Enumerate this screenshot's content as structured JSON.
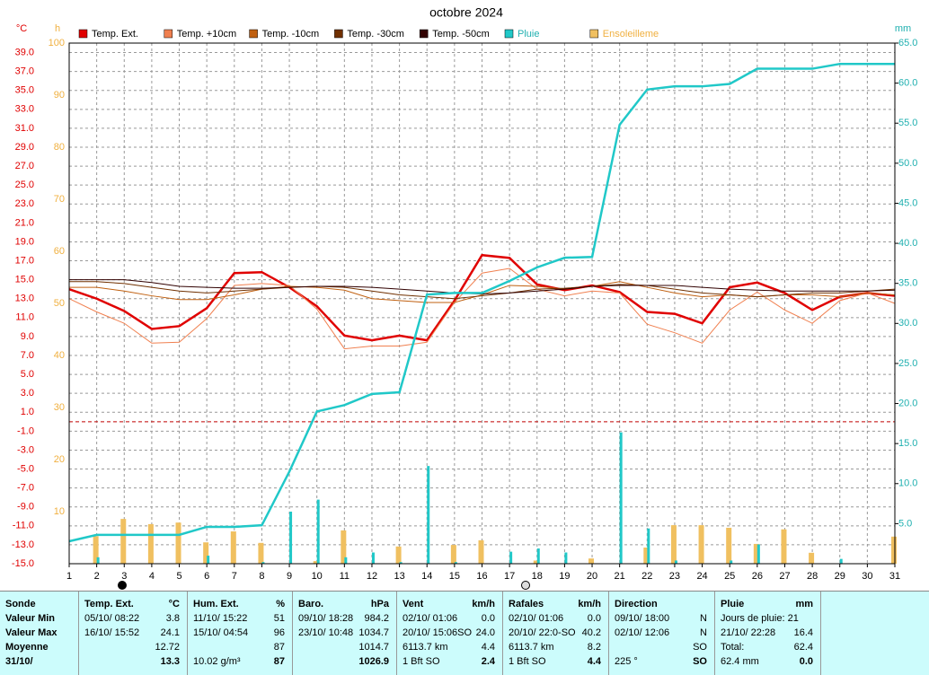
{
  "chart_data": {
    "type": "line",
    "title": "octobre 2024",
    "y_unit": "°C",
    "y2_unit": "h",
    "y3_unit": "mm",
    "x": [
      1,
      2,
      3,
      4,
      5,
      6,
      7,
      8,
      9,
      10,
      11,
      12,
      13,
      14,
      15,
      16,
      17,
      18,
      19,
      20,
      21,
      22,
      23,
      24,
      25,
      26,
      27,
      28,
      29,
      30,
      31
    ],
    "xlim": [
      1,
      31
    ],
    "ylim": [
      -15,
      40
    ],
    "yticks": [
      {
        "value": -15,
        "label": "-15.0"
      },
      {
        "value": -13,
        "label": "-13.0"
      },
      {
        "value": -11,
        "label": "-11.0"
      },
      {
        "value": -9,
        "label": "-9.0"
      },
      {
        "value": -7,
        "label": "-7.0"
      },
      {
        "value": -5,
        "label": "-5.0"
      },
      {
        "value": -3,
        "label": "-3.0"
      },
      {
        "value": -1,
        "label": "-1.0"
      },
      {
        "value": 1,
        "label": "1.0"
      },
      {
        "value": 3,
        "label": "3.0"
      },
      {
        "value": 5,
        "label": "5.0"
      },
      {
        "value": 7,
        "label": "7.0"
      },
      {
        "value": 9,
        "label": "9.0"
      },
      {
        "value": 11,
        "label": "11.0"
      },
      {
        "value": 13,
        "label": "13.0"
      },
      {
        "value": 15,
        "label": "15.0"
      },
      {
        "value": 17,
        "label": "17.0"
      },
      {
        "value": 19,
        "label": "19.0"
      },
      {
        "value": 21,
        "label": "21.0"
      },
      {
        "value": 23,
        "label": "23.0"
      },
      {
        "value": 25,
        "label": "25.0"
      },
      {
        "value": 27,
        "label": "27.0"
      },
      {
        "value": 29,
        "label": "29.0"
      },
      {
        "value": 31,
        "label": "31.0"
      },
      {
        "value": 33,
        "label": "33.0"
      },
      {
        "value": 35,
        "label": "35.0"
      },
      {
        "value": 37,
        "label": "37.0"
      },
      {
        "value": 39,
        "label": "39.0"
      }
    ],
    "y2lim": [
      0,
      100
    ],
    "y2ticks": [
      10,
      20,
      30,
      40,
      50,
      60,
      70,
      80,
      90,
      100
    ],
    "y3lim": [
      0,
      65
    ],
    "y3ticks": [
      {
        "value": 5,
        "label": "5.0"
      },
      {
        "value": 10,
        "label": "10.0"
      },
      {
        "value": 15,
        "label": "15.0"
      },
      {
        "value": 20,
        "label": "20.0"
      },
      {
        "value": 25,
        "label": "25.0"
      },
      {
        "value": 30,
        "label": "30.0"
      },
      {
        "value": 35,
        "label": "35.0"
      },
      {
        "value": 40,
        "label": "40.0"
      },
      {
        "value": 45,
        "label": "45.0"
      },
      {
        "value": 50,
        "label": "50.0"
      },
      {
        "value": 55,
        "label": "55.0"
      },
      {
        "value": 60,
        "label": "60.0"
      },
      {
        "value": 65,
        "label": "65.0"
      }
    ],
    "grid": true,
    "hline": {
      "value": 0,
      "color": "#c00000"
    },
    "series": [
      {
        "name": "Temp. Ext.",
        "type": "line",
        "color": "#e00000",
        "width": 2.5,
        "values": [
          14.0,
          13.0,
          11.7,
          9.8,
          10.1,
          12.0,
          15.7,
          15.8,
          14.2,
          12.2,
          9.1,
          8.6,
          9.1,
          8.6,
          12.8,
          17.6,
          17.3,
          14.5,
          13.9,
          14.4,
          13.7,
          11.6,
          11.4,
          10.4,
          14.2,
          14.7,
          13.6,
          11.8,
          13.2,
          13.6,
          13.3
        ]
      },
      {
        "name": "Temp. +10cm",
        "type": "line",
        "color": "#f08050",
        "width": 1,
        "values": [
          13.0,
          11.6,
          10.4,
          8.3,
          8.4,
          10.9,
          14.4,
          14.6,
          14.4,
          11.9,
          7.7,
          8.0,
          8.0,
          8.4,
          12.6,
          15.7,
          16.2,
          14.0,
          13.3,
          13.8,
          13.6,
          10.3,
          9.4,
          8.3,
          11.8,
          13.7,
          11.8,
          10.4,
          12.8,
          13.6,
          12.5
        ]
      },
      {
        "name": "Temp. -10cm",
        "type": "line",
        "color": "#c06010",
        "width": 1,
        "values": [
          14.2,
          14.2,
          13.8,
          13.3,
          12.9,
          12.9,
          13.4,
          14.0,
          14.3,
          14.2,
          13.9,
          13.0,
          12.8,
          12.6,
          12.6,
          13.4,
          14.4,
          14.3,
          14.0,
          14.3,
          14.8,
          14.2,
          13.6,
          13.2,
          13.4,
          13.2,
          13.4,
          13.4,
          13.2,
          13.6,
          13.4
        ]
      },
      {
        "name": "Temp. -30cm",
        "type": "line",
        "color": "#703000",
        "width": 1,
        "values": [
          14.8,
          14.8,
          14.6,
          14.2,
          13.8,
          13.6,
          13.8,
          14.0,
          14.2,
          14.3,
          14.2,
          13.8,
          13.4,
          13.2,
          13.0,
          13.3,
          13.6,
          14.0,
          14.1,
          14.3,
          14.5,
          14.4,
          14.0,
          13.6,
          13.4,
          13.2,
          13.4,
          13.6,
          13.6,
          13.8,
          14.0
        ]
      },
      {
        "name": "Temp. -50cm",
        "type": "line",
        "color": "#300000",
        "width": 1,
        "values": [
          15.0,
          15.0,
          15.0,
          14.7,
          14.3,
          14.2,
          14.1,
          14.1,
          14.2,
          14.3,
          14.3,
          14.2,
          14.0,
          13.8,
          13.6,
          13.5,
          13.6,
          13.8,
          14.0,
          14.3,
          14.4,
          14.4,
          14.4,
          14.2,
          14.0,
          13.9,
          13.8,
          13.8,
          13.8,
          13.8,
          13.9
        ]
      },
      {
        "name": "Pluie",
        "type": "line",
        "axis": "y3",
        "color": "#20c8c8",
        "text_color": "#20b0b0",
        "width": 2.5,
        "values": [
          2.8,
          3.6,
          3.6,
          3.6,
          3.6,
          4.6,
          4.6,
          4.8,
          11.5,
          19.0,
          19.8,
          21.2,
          21.4,
          33.6,
          33.8,
          33.8,
          35.3,
          37.0,
          38.2,
          38.3,
          54.8,
          59.2,
          59.6,
          59.6,
          59.9,
          61.8,
          61.8,
          61.8,
          62.4,
          62.4,
          62.4
        ],
        "bars": [
          0,
          0.8,
          0,
          0,
          0,
          1.0,
          0,
          0.2,
          6.5,
          8.0,
          0.8,
          1.4,
          0.2,
          12.2,
          0.2,
          0,
          1.5,
          1.9,
          1.4,
          0,
          16.4,
          4.4,
          0.4,
          0,
          0.4,
          2.4,
          0,
          0,
          0.6,
          0,
          0
        ]
      },
      {
        "name": "Ensoleilleme",
        "type": "bar",
        "axis": "y2",
        "color": "#f0c060",
        "text_color": "#f0b040",
        "values": [
          0,
          5.3,
          8.6,
          7.6,
          7.9,
          4.1,
          6.2,
          4.0,
          0,
          0.5,
          6.4,
          0,
          3.3,
          0,
          3.6,
          4.5,
          0,
          0.6,
          0,
          1.0,
          0,
          3.1,
          7.4,
          7.4,
          6.9,
          3.8,
          6.6,
          2.1,
          0,
          0,
          5.2
        ]
      }
    ]
  },
  "table": {
    "row_labels": [
      "Sonde",
      "Valeur Min",
      "Valeur Max",
      "Moyenne",
      "31/10/"
    ],
    "columns": [
      {
        "header": "Temp. Ext.",
        "unit": "°C",
        "rows": [
          {
            "left": "05/10/ 08:22",
            "value": "3.8"
          },
          {
            "left": "16/10/ 15:52",
            "value": "24.1"
          },
          {
            "value": "12.72"
          },
          {
            "value": "13.3"
          }
        ]
      },
      {
        "header": "Hum. Ext.",
        "unit": "%",
        "rows": [
          {
            "left": "11/10/ 15:22",
            "value": "51"
          },
          {
            "left": "15/10/ 04:54",
            "value": "96"
          },
          {
            "value": "87"
          },
          {
            "left": "10.02 g/m³",
            "value": "87"
          }
        ]
      },
      {
        "header": "Baro.",
        "unit": "hPa",
        "rows": [
          {
            "left": "09/10/ 18:28",
            "value": "984.2"
          },
          {
            "left": "23/10/ 10:48",
            "value": "1034.7"
          },
          {
            "value": "1014.7"
          },
          {
            "value": "1026.9"
          }
        ]
      },
      {
        "header": "Vent",
        "unit": "km/h",
        "rows": [
          {
            "left": "02/10/ 01:06",
            "value": "0.0"
          },
          {
            "left": "20/10/ 15:06SO",
            "value": "24.0"
          },
          {
            "left": "6113.7 km",
            "value": "4.4"
          },
          {
            "left": "1 Bft SO",
            "value": "2.4"
          }
        ]
      },
      {
        "header": "Rafales",
        "unit": "km/h",
        "rows": [
          {
            "left": "02/10/ 01:06",
            "value": "0.0"
          },
          {
            "left": "20/10/ 22:0-SO",
            "value": "40.2"
          },
          {
            "left": "6113.7 km",
            "value": "8.2"
          },
          {
            "left": "1 Bft SO",
            "value": "4.4"
          }
        ]
      },
      {
        "header": "Direction",
        "rows": [
          {
            "left": "09/10/ 18:00",
            "value": "N"
          },
          {
            "left": "02/10/ 12:06",
            "value": "N"
          },
          {
            "value": "SO"
          },
          {
            "left": "225 °",
            "value": "SO"
          }
        ]
      },
      {
        "header": "Pluie",
        "unit": "mm",
        "rows": [
          {
            "left": "Jours de pluie: 21"
          },
          {
            "left": "21/10/ 22:28",
            "value": "16.4"
          },
          {
            "left": "Total:",
            "value": "62.4"
          },
          {
            "left": "62.4 mm",
            "value": "0.0"
          }
        ]
      }
    ]
  }
}
